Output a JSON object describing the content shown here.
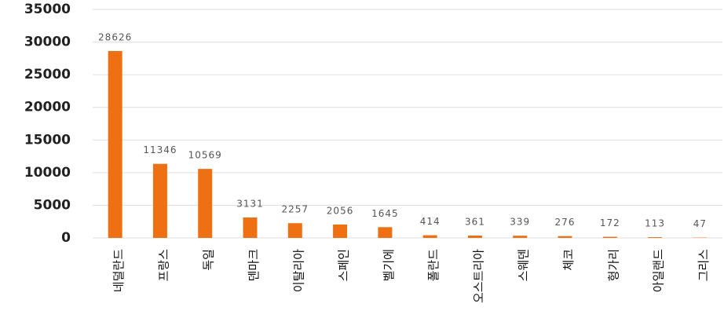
{
  "chart_data": {
    "type": "bar",
    "categories": [
      "네덜란드",
      "프랑스",
      "독일",
      "덴마크",
      "이탈리아",
      "스페인",
      "벨기에",
      "폴란드",
      "오스트리아",
      "스웨덴",
      "체코",
      "헝가리",
      "아일랜드",
      "그리스"
    ],
    "values": [
      28626,
      11346,
      10569,
      3131,
      2257,
      2056,
      1645,
      414,
      361,
      339,
      276,
      172,
      113,
      47
    ],
    "color": "#ef6f13",
    "ylim": [
      0,
      35000
    ],
    "yticks": [
      0,
      5000,
      10000,
      15000,
      20000,
      25000,
      30000,
      35000
    ],
    "grid": true
  }
}
